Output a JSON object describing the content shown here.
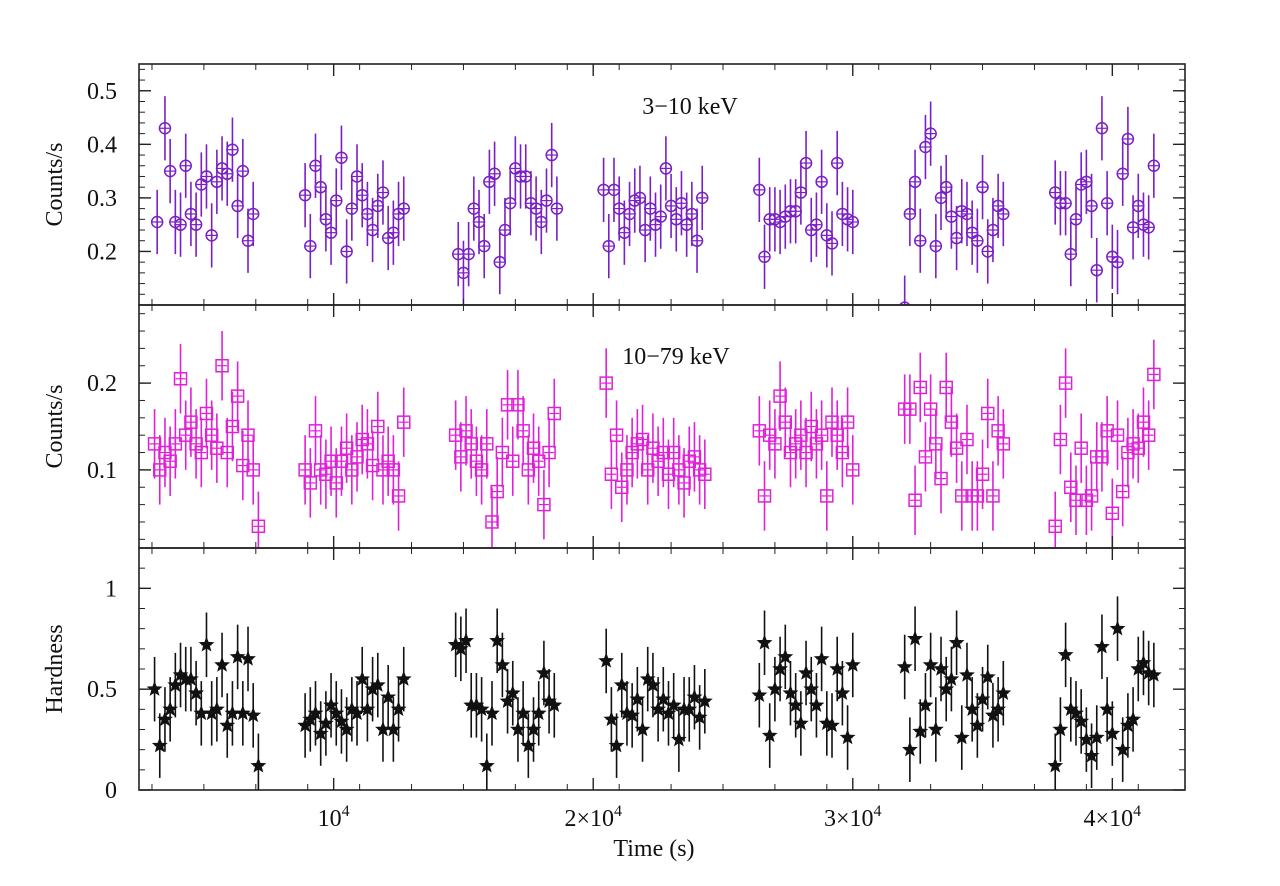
{
  "chart_data": [
    {
      "type": "scatter",
      "panel": "top",
      "annotation": "3−10 keV",
      "ylabel": "Counts/s",
      "ylim": [
        0.1,
        0.55
      ],
      "yticks": [
        0.2,
        0.3,
        0.4,
        0.5
      ],
      "ytick_labels": [
        "0.2",
        "0.3",
        "0.4",
        "0.5"
      ],
      "marker": "circle",
      "color": "#7a1fc6",
      "series": [
        {
          "x": [
            3200,
            3500,
            3700,
            3900,
            4100,
            4300,
            4500,
            4700,
            4900,
            5100,
            5300,
            5500,
            5700,
            5900,
            6100,
            6300,
            6500,
            6700,
            6900,
            8900,
            9100,
            9300,
            9500,
            9700,
            9900,
            10100,
            10300,
            10500,
            10700,
            10900,
            11100,
            11300,
            11500,
            11700,
            11900,
            12100,
            12300,
            12500,
            12700,
            14800,
            15000,
            15200,
            15400,
            15600,
            15800,
            16000,
            16200,
            16400,
            16600,
            16800,
            17000,
            17200,
            17400,
            17600,
            17800,
            18000,
            18200,
            18400,
            18600,
            20400,
            20600,
            20800,
            21000,
            21200,
            21400,
            21600,
            21800,
            22000,
            22200,
            22400,
            22600,
            22800,
            23000,
            23200,
            23400,
            23600,
            23800,
            24000,
            24200,
            26400,
            26600,
            26800,
            27000,
            27200,
            27400,
            27600,
            27800,
            28000,
            28200,
            28400,
            28600,
            28800,
            29000,
            29200,
            29400,
            29600,
            29800,
            30000,
            32000,
            32200,
            32400,
            32600,
            32800,
            33000,
            33200,
            33400,
            33600,
            33800,
            34000,
            34200,
            34400,
            34600,
            34800,
            35000,
            35200,
            35400,
            35600,
            35800,
            37800,
            38000,
            38200,
            38400,
            38600,
            38800,
            39000,
            39200,
            39400,
            39600,
            39800,
            40000,
            40200,
            40400,
            40600,
            40800,
            41000,
            41200,
            41400,
            41600
          ],
          "y": [
            0.255,
            0.43,
            0.35,
            0.255,
            0.25,
            0.36,
            0.27,
            0.25,
            0.325,
            0.34,
            0.23,
            0.33,
            0.355,
            0.345,
            0.39,
            0.285,
            0.35,
            0.22,
            0.27,
            0.305,
            0.21,
            0.36,
            0.32,
            0.26,
            0.235,
            0.295,
            0.375,
            0.2,
            0.28,
            0.34,
            0.305,
            0.27,
            0.24,
            0.285,
            0.31,
            0.225,
            0.235,
            0.27,
            0.28,
            0.195,
            0.16,
            0.195,
            0.28,
            0.255,
            0.21,
            0.33,
            0.345,
            0.18,
            0.24,
            0.29,
            0.355,
            0.34,
            0.34,
            0.29,
            0.28,
            0.255,
            0.295,
            0.38,
            0.28,
            0.315,
            0.21,
            0.315,
            0.28,
            0.235,
            0.27,
            0.295,
            0.3,
            0.24,
            0.28,
            0.25,
            0.265,
            0.355,
            0.285,
            0.26,
            0.29,
            0.25,
            0.27,
            0.22,
            0.3,
            0.315,
            0.19,
            0.26,
            0.26,
            0.255,
            0.265,
            0.275,
            0.275,
            0.31,
            0.365,
            0.24,
            0.25,
            0.33,
            0.23,
            0.215,
            0.365,
            0.27,
            0.26,
            0.255,
            0.095,
            0.27,
            0.33,
            0.22,
            0.395,
            0.42,
            0.21,
            0.3,
            0.32,
            0.265,
            0.225,
            0.275,
            0.27,
            0.235,
            0.22,
            0.32,
            0.2,
            0.24,
            0.285,
            0.27,
            0.31,
            0.29,
            0.29,
            0.195,
            0.26,
            0.325,
            0.33,
            0.285,
            0.165,
            0.43,
            0.29,
            0.19,
            0.18,
            0.345,
            0.41,
            0.245,
            0.285,
            0.25,
            0.245,
            0.36
          ],
          "yerr": 0.06
        }
      ]
    },
    {
      "type": "scatter",
      "panel": "middle",
      "annotation": "10−79 keV",
      "ylabel": "Counts/s",
      "ylim": [
        0.01,
        0.29
      ],
      "yticks": [
        0.1,
        0.2
      ],
      "ytick_labels": [
        "0.1",
        "0.2"
      ],
      "marker": "square",
      "color": "#e020d8",
      "series": [
        {
          "x": [
            3100,
            3300,
            3500,
            3700,
            3900,
            4100,
            4300,
            4500,
            4700,
            4900,
            5100,
            5300,
            5500,
            5700,
            5900,
            6100,
            6300,
            6500,
            6700,
            6900,
            7100,
            8900,
            9100,
            9300,
            9500,
            9700,
            9900,
            10100,
            10300,
            10500,
            10700,
            10900,
            11100,
            11300,
            11500,
            11700,
            11900,
            12100,
            12300,
            12500,
            12700,
            14700,
            14900,
            15100,
            15300,
            15500,
            15700,
            15900,
            16100,
            16300,
            16500,
            16700,
            16900,
            17100,
            17300,
            17500,
            17700,
            17900,
            18100,
            18300,
            18500,
            20500,
            20700,
            20900,
            21100,
            21300,
            21500,
            21700,
            21900,
            22100,
            22300,
            22500,
            22700,
            22900,
            23100,
            23300,
            23500,
            23700,
            23900,
            24100,
            24300,
            26400,
            26600,
            26800,
            27000,
            27200,
            27400,
            27600,
            27800,
            28000,
            28200,
            28400,
            28600,
            28800,
            29000,
            29200,
            29400,
            29600,
            29800,
            30000,
            32000,
            32200,
            32400,
            32600,
            32800,
            33000,
            33200,
            33400,
            33600,
            33800,
            34000,
            34200,
            34400,
            34600,
            34800,
            35000,
            35200,
            35400,
            35600,
            35800,
            37800,
            38000,
            38200,
            38400,
            38600,
            38800,
            39000,
            39200,
            39400,
            39600,
            39800,
            40000,
            40200,
            40400,
            40600,
            40800,
            41000,
            41200,
            41400,
            41600
          ],
          "y": [
            0.13,
            0.1,
            0.12,
            0.11,
            0.13,
            0.205,
            0.14,
            0.155,
            0.13,
            0.12,
            0.165,
            0.14,
            0.125,
            0.22,
            0.12,
            0.15,
            0.185,
            0.105,
            0.14,
            0.1,
            0.035,
            0.1,
            0.085,
            0.145,
            0.1,
            0.095,
            0.11,
            0.085,
            0.11,
            0.125,
            0.1,
            0.115,
            0.135,
            0.13,
            0.105,
            0.15,
            0.1,
            0.11,
            0.1,
            0.07,
            0.155,
            0.14,
            0.115,
            0.145,
            0.13,
            0.11,
            0.1,
            0.13,
            0.04,
            0.075,
            0.12,
            0.175,
            0.11,
            0.175,
            0.145,
            0.1,
            0.125,
            0.11,
            0.06,
            0.12,
            0.165,
            0.2,
            0.095,
            0.14,
            0.08,
            0.1,
            0.12,
            0.13,
            0.135,
            0.1,
            0.125,
            0.11,
            0.12,
            0.095,
            0.12,
            0.1,
            0.085,
            0.11,
            0.115,
            0.1,
            0.095,
            0.145,
            0.07,
            0.14,
            0.13,
            0.185,
            0.155,
            0.12,
            0.13,
            0.14,
            0.12,
            0.15,
            0.13,
            0.14,
            0.07,
            0.155,
            0.14,
            0.12,
            0.155,
            0.1,
            0.17,
            0.17,
            0.065,
            0.195,
            0.115,
            0.17,
            0.13,
            0.09,
            0.195,
            0.155,
            0.125,
            0.07,
            0.135,
            0.07,
            0.07,
            0.095,
            0.165,
            0.07,
            0.145,
            0.13,
            0.035,
            0.135,
            0.2,
            0.08,
            0.065,
            0.125,
            0.065,
            0.07,
            0.115,
            0.115,
            0.145,
            0.05,
            0.14,
            0.075,
            0.12,
            0.13,
            0.125,
            0.155,
            0.14,
            0.21
          ],
          "yerr": 0.04
        }
      ]
    },
    {
      "type": "scatter",
      "panel": "bottom",
      "ylabel": "Hardness",
      "xlabel": "Time (s)",
      "xlim": [
        2500,
        42800
      ],
      "ylim": [
        0,
        1.2
      ],
      "yticks": [
        0,
        0.5,
        1
      ],
      "ytick_labels": [
        "0",
        "0.5",
        "1"
      ],
      "xticks": [
        10000,
        20000,
        30000,
        40000
      ],
      "xtick_labels": [
        {
          "base": "10",
          "sup": "4"
        },
        {
          "base": "2×10",
          "sup": "4"
        },
        {
          "base": "3×10",
          "sup": "4"
        },
        {
          "base": "4×10",
          "sup": "4"
        }
      ],
      "marker": "star",
      "color": "#111111",
      "series": [
        {
          "x": [
            3100,
            3300,
            3500,
            3700,
            3900,
            4100,
            4300,
            4500,
            4700,
            4900,
            5100,
            5300,
            5500,
            5700,
            5900,
            6100,
            6300,
            6500,
            6700,
            6900,
            7100,
            8900,
            9100,
            9300,
            9500,
            9700,
            9900,
            10100,
            10300,
            10500,
            10700,
            10900,
            11100,
            11300,
            11500,
            11700,
            11900,
            12100,
            12300,
            12500,
            12700,
            14700,
            14900,
            15100,
            15300,
            15500,
            15700,
            15900,
            16100,
            16300,
            16500,
            16700,
            16900,
            17100,
            17300,
            17500,
            17700,
            17900,
            18100,
            18300,
            18500,
            20500,
            20700,
            20900,
            21100,
            21300,
            21500,
            21700,
            21900,
            22100,
            22300,
            22500,
            22700,
            22900,
            23100,
            23300,
            23500,
            23700,
            23900,
            24100,
            24300,
            26400,
            26600,
            26800,
            27000,
            27200,
            27400,
            27600,
            27800,
            28000,
            28200,
            28400,
            28600,
            28800,
            29000,
            29200,
            29400,
            29600,
            29800,
            30000,
            32000,
            32200,
            32400,
            32600,
            32800,
            33000,
            33200,
            33400,
            33600,
            33800,
            34000,
            34200,
            34400,
            34600,
            34800,
            35000,
            35200,
            35400,
            35600,
            35800,
            37800,
            38000,
            38200,
            38400,
            38600,
            38800,
            39000,
            39200,
            39400,
            39600,
            39800,
            40000,
            40200,
            40400,
            40600,
            40800,
            41000,
            41200,
            41400,
            41600
          ],
          "y": [
            0.5,
            0.22,
            0.35,
            0.4,
            0.52,
            0.57,
            0.55,
            0.55,
            0.48,
            0.38,
            0.72,
            0.38,
            0.4,
            0.62,
            0.32,
            0.38,
            0.66,
            0.38,
            0.65,
            0.37,
            0.12,
            0.32,
            0.35,
            0.38,
            0.28,
            0.33,
            0.42,
            0.38,
            0.34,
            0.3,
            0.4,
            0.38,
            0.55,
            0.4,
            0.5,
            0.52,
            0.3,
            0.46,
            0.3,
            0.4,
            0.55,
            0.72,
            0.7,
            0.74,
            0.42,
            0.42,
            0.4,
            0.12,
            0.38,
            0.74,
            0.62,
            0.44,
            0.48,
            0.3,
            0.38,
            0.22,
            0.3,
            0.38,
            0.58,
            0.44,
            0.42,
            0.64,
            0.35,
            0.22,
            0.52,
            0.38,
            0.37,
            0.45,
            0.3,
            0.55,
            0.52,
            0.4,
            0.45,
            0.38,
            0.42,
            0.25,
            0.4,
            0.4,
            0.46,
            0.36,
            0.44,
            0.47,
            0.73,
            0.27,
            0.5,
            0.6,
            0.66,
            0.48,
            0.42,
            0.33,
            0.58,
            0.5,
            0.42,
            0.65,
            0.33,
            0.32,
            0.6,
            0.48,
            0.26,
            0.62,
            0.61,
            0.2,
            0.75,
            0.29,
            0.42,
            0.62,
            0.3,
            0.6,
            0.5,
            0.55,
            0.73,
            0.26,
            0.57,
            0.4,
            0.32,
            0.45,
            0.56,
            0.37,
            0.4,
            0.48,
            0.12,
            0.3,
            0.67,
            0.4,
            0.38,
            0.34,
            0.25,
            0.17,
            0.26,
            0.71,
            0.4,
            0.28,
            0.8,
            0.2,
            0.32,
            0.35,
            0.6,
            0.63,
            0.58,
            0.57
          ],
          "yerr": 0.16
        }
      ]
    }
  ]
}
